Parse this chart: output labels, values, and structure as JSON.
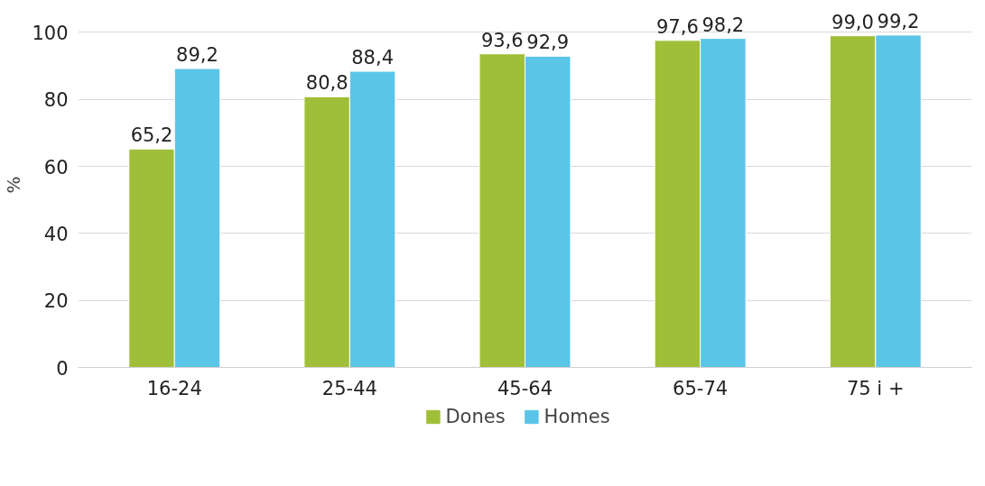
{
  "chart_data": {
    "type": "bar",
    "ylabel": "%",
    "categories": [
      "16-24",
      "25-44",
      "45-64",
      "65-74",
      "75 i +"
    ],
    "series": [
      {
        "name": "Dones",
        "color": "#a0bf38",
        "values": [
          65.2,
          80.8,
          93.6,
          97.6,
          99.0
        ],
        "value_labels": [
          "65,2",
          "80,8",
          "93,6",
          "97,6",
          "99,0"
        ]
      },
      {
        "name": "Homes",
        "color": "#5bc5e8",
        "values": [
          89.2,
          88.4,
          92.9,
          98.2,
          99.2
        ],
        "value_labels": [
          "89,2",
          "88,4",
          "92,9",
          "98,2",
          "99,2"
        ]
      }
    ],
    "ylim": [
      0,
      100
    ],
    "yticks": [
      0,
      20,
      40,
      60,
      80,
      100
    ],
    "grid": "y",
    "legend": "bottom"
  }
}
